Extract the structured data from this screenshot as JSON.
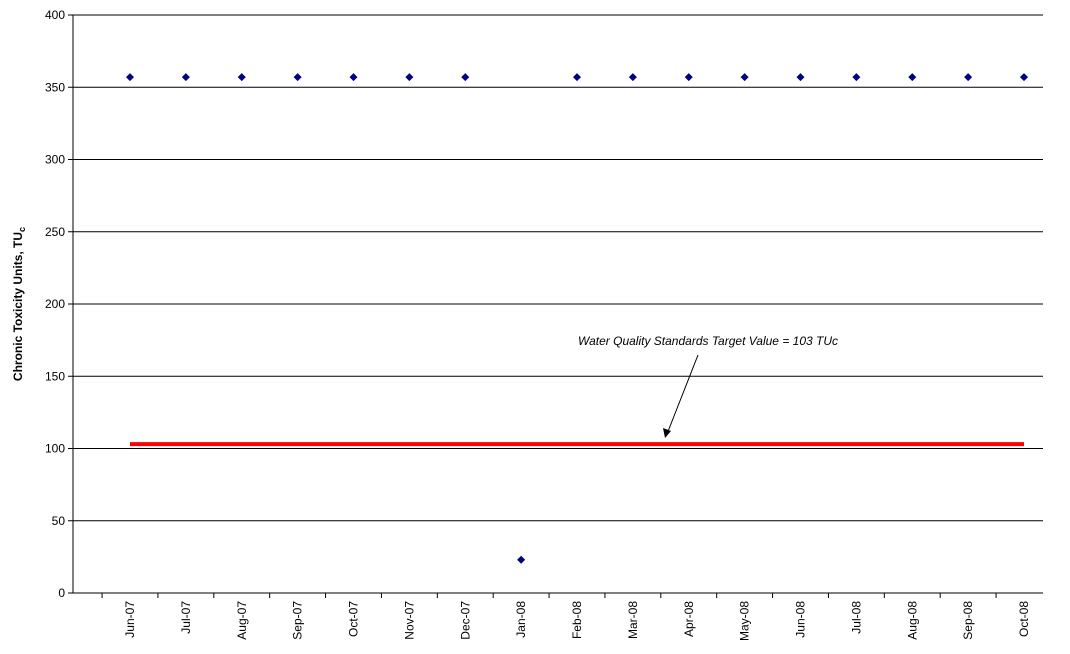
{
  "chart_data": {
    "type": "scatter",
    "y_label": "Chronic Toxicity Units, TU",
    "y_label_subscript": "c",
    "categories": [
      "Jun-07",
      "Jul-07",
      "Aug-07",
      "Sep-07",
      "Oct-07",
      "Nov-07",
      "Dec-07",
      "Jan-08",
      "Feb-08",
      "Mar-08",
      "Apr-08",
      "May-08",
      "Jun-08",
      "Jul-08",
      "Aug-08",
      "Sep-08",
      "Oct-08"
    ],
    "values": [
      357,
      357,
      357,
      357,
      357,
      357,
      357,
      23,
      357,
      357,
      357,
      357,
      357,
      357,
      357,
      357,
      357
    ],
    "color": "#000080",
    "reference_line": {
      "value": 103,
      "color": "#ff0000"
    },
    "annotation": "Water Quality Standards Target Value = 103 TUc",
    "ylim": [
      0,
      400
    ],
    "yticks": [
      0,
      50,
      100,
      150,
      200,
      250,
      300,
      350,
      400
    ],
    "grid": true
  }
}
